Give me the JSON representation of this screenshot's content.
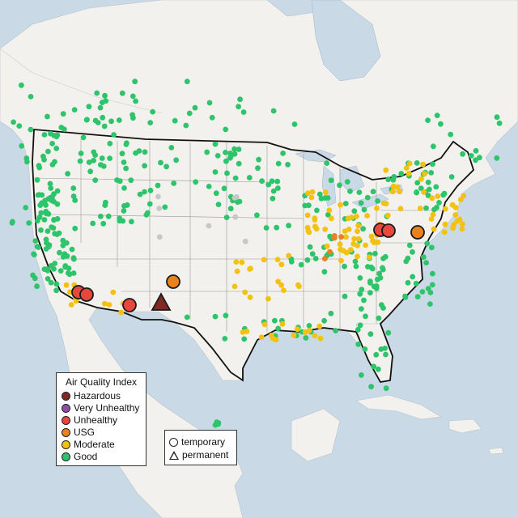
{
  "colors": {
    "ocean": "#c9d9e6",
    "land": "#f2f1ee",
    "hazardous": "#7e2a22",
    "very_unhealthy": "#8e4fa3",
    "unhealthy": "#e8473d",
    "usg": "#e8821f",
    "moderate": "#f2c20e",
    "good": "#2ec46b"
  },
  "legend": {
    "title": "Air Quality Index",
    "items": [
      {
        "label": "Hazardous",
        "color": "#7e2a22"
      },
      {
        "label": "Very Unhealthy",
        "color": "#8e4fa3"
      },
      {
        "label": "Unhealthy",
        "color": "#e8473d"
      },
      {
        "label": "USG",
        "color": "#e8821f"
      },
      {
        "label": "Moderate",
        "color": "#f2c20e"
      },
      {
        "label": "Good",
        "color": "#2ec46b"
      }
    ]
  },
  "shape_legend": {
    "items": [
      {
        "label": "temporary",
        "shape": "circle"
      },
      {
        "label": "permanent",
        "shape": "triangle"
      }
    ]
  },
  "markers": [
    {
      "category": "Unhealthy",
      "shape": "circle"
    },
    {
      "category": "Unhealthy",
      "shape": "circle"
    },
    {
      "category": "Unhealthy",
      "shape": "circle"
    },
    {
      "category": "Unhealthy",
      "shape": "circle"
    },
    {
      "category": "Unhealthy",
      "shape": "circle"
    },
    {
      "category": "USG",
      "shape": "circle"
    },
    {
      "category": "USG",
      "shape": "circle"
    },
    {
      "category": "Hazardous",
      "shape": "triangle"
    }
  ]
}
